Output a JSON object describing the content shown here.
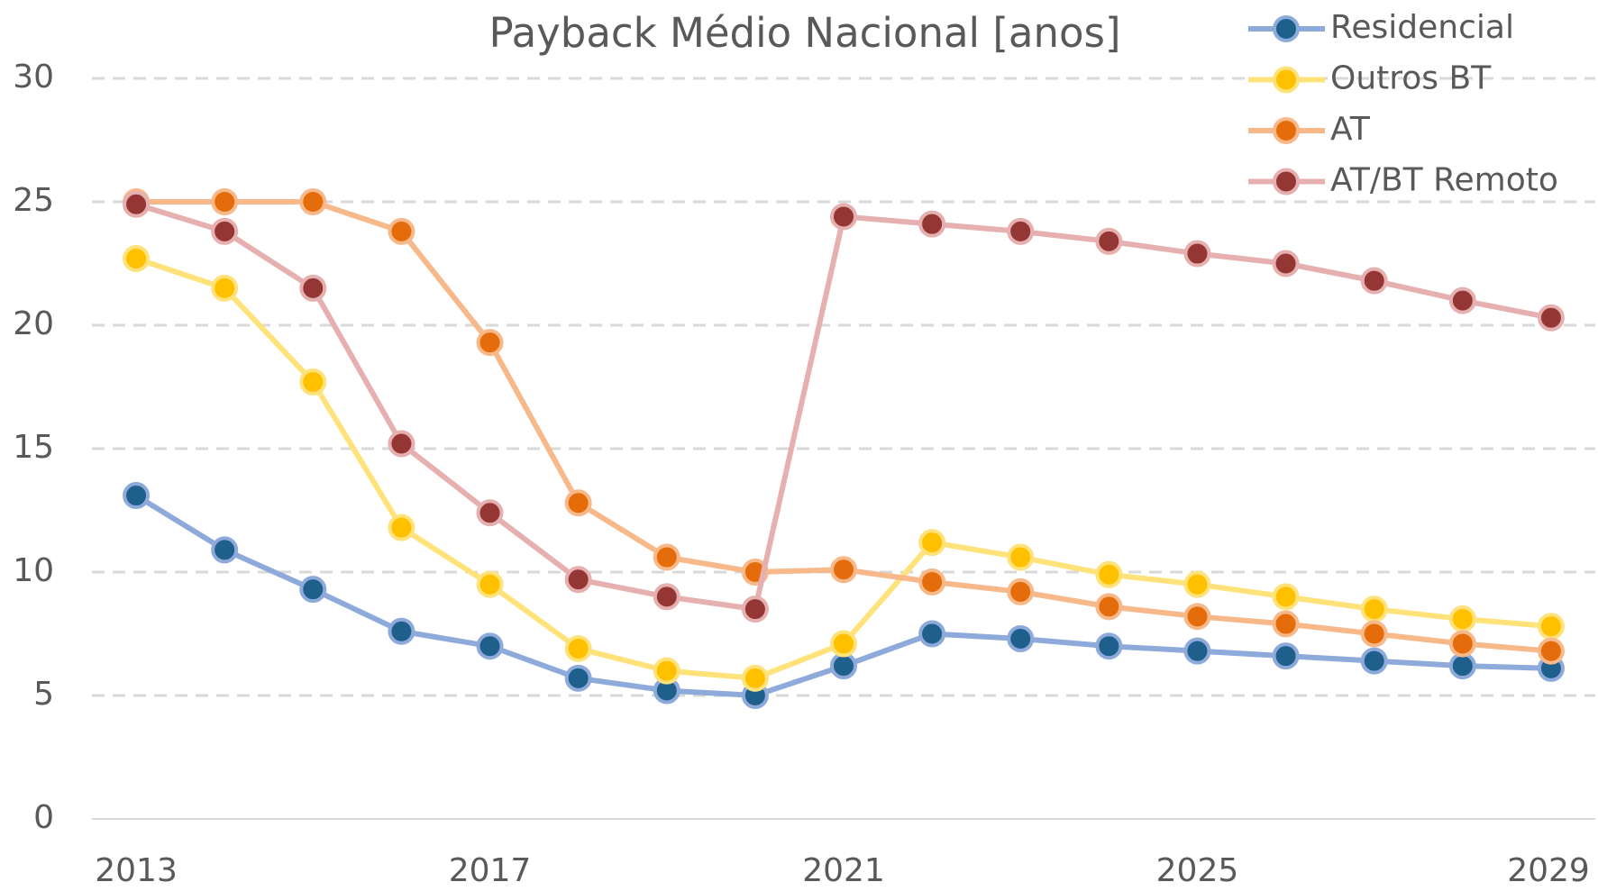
{
  "chart_data": {
    "type": "line",
    "title": "Payback Médio Nacional [anos]",
    "x": [
      2013,
      2014,
      2015,
      2016,
      2017,
      2018,
      2019,
      2020,
      2021,
      2022,
      2023,
      2024,
      2025,
      2026,
      2027,
      2028,
      2029
    ],
    "series": [
      {
        "name": "Residencial",
        "color": "#8eaadb",
        "marker_color": "#1f5f8b",
        "values": [
          13.1,
          10.9,
          9.3,
          7.6,
          7.0,
          5.7,
          5.2,
          5.0,
          6.2,
          7.5,
          7.3,
          7.0,
          6.8,
          6.6,
          6.4,
          6.2,
          6.1
        ]
      },
      {
        "name": "Outros BT",
        "color": "#ffe27a",
        "marker_color": "#ffc000",
        "values": [
          22.7,
          21.5,
          17.7,
          11.8,
          9.5,
          6.9,
          6.0,
          5.7,
          7.1,
          11.2,
          10.6,
          9.9,
          9.5,
          9.0,
          8.5,
          8.1,
          7.8
        ]
      },
      {
        "name": "AT",
        "color": "#f8b98a",
        "marker_color": "#e46c0a",
        "values": [
          25.0,
          25.0,
          25.0,
          23.8,
          19.3,
          12.8,
          10.6,
          10.0,
          10.1,
          9.6,
          9.2,
          8.6,
          8.2,
          7.9,
          7.5,
          7.1,
          6.8
        ]
      },
      {
        "name": "AT/BT Remoto",
        "color": "#e6b0b0",
        "marker_color": "#943634",
        "values": [
          24.9,
          23.8,
          21.5,
          15.2,
          12.4,
          9.7,
          9.0,
          8.5,
          24.4,
          24.1,
          23.8,
          23.4,
          22.9,
          22.5,
          21.8,
          21.0,
          20.3
        ]
      }
    ],
    "xlim": [
      2012.5,
      2029.5
    ],
    "xticks": [
      2013,
      2017,
      2021,
      2025,
      2029
    ],
    "ylim": [
      0,
      30
    ],
    "yticks": [
      0,
      5,
      10,
      15,
      20,
      25,
      30
    ],
    "grid": true,
    "legend": "top-right"
  }
}
